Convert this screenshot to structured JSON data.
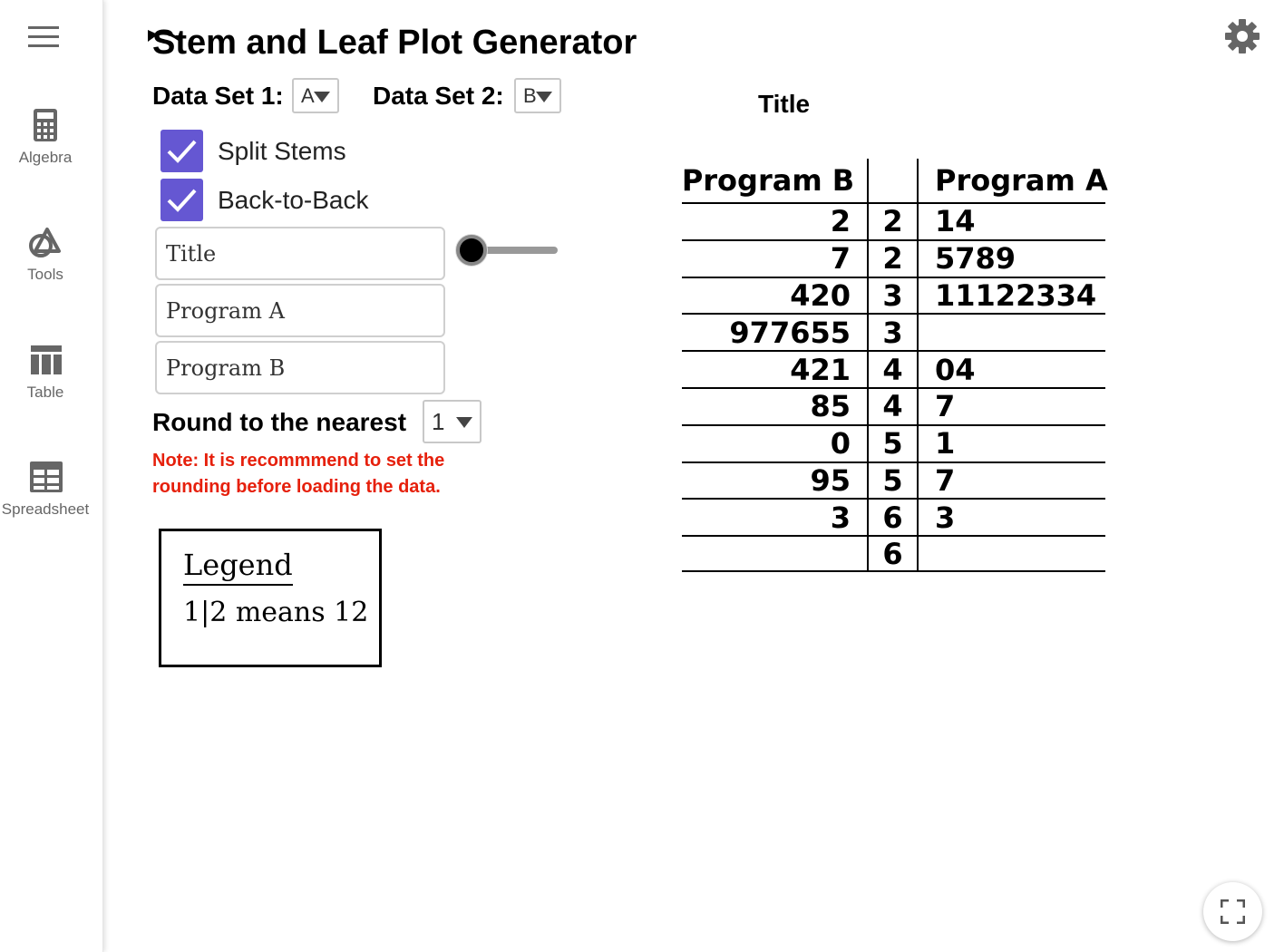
{
  "sidebar": {
    "items": [
      {
        "label": "Algebra",
        "icon": "calculator-icon"
      },
      {
        "label": "Tools",
        "icon": "shapes-icon"
      },
      {
        "label": "Table",
        "icon": "table-icon"
      },
      {
        "label": "Spreadsheet",
        "icon": "spreadsheet-icon"
      }
    ]
  },
  "header": {
    "title": "Stem and Leaf Plot Generator"
  },
  "controls": {
    "dataset1_label": "Data Set 1:",
    "dataset1_value": "A",
    "dataset2_label": "Data Set 2:",
    "dataset2_value": "B",
    "split_stems_label": "Split Stems",
    "split_stems_checked": true,
    "back_to_back_label": "Back-to-Back",
    "back_to_back_checked": true,
    "title_field_value": "Title",
    "program_a_field_value": "Program A",
    "program_b_field_value": "Program B",
    "slider_value": 0,
    "round_label": "Round to the nearest",
    "round_value": "1",
    "note": "Note: It is recommmend to set the rounding before loading the data."
  },
  "legend": {
    "title": "Legend",
    "text": "1|2 means 12"
  },
  "plot": {
    "title": "Title",
    "left_header": "Program B",
    "stem_header": "",
    "right_header": "Program A",
    "rows": [
      {
        "left": "2",
        "stem": "2",
        "right": "14"
      },
      {
        "left": "7",
        "stem": "2",
        "right": "5789"
      },
      {
        "left": "420",
        "stem": "3",
        "right": "11122334"
      },
      {
        "left": "977655",
        "stem": "3",
        "right": ""
      },
      {
        "left": "421",
        "stem": "4",
        "right": "04"
      },
      {
        "left": "85",
        "stem": "4",
        "right": "7"
      },
      {
        "left": "0",
        "stem": "5",
        "right": "1"
      },
      {
        "left": "95",
        "stem": "5",
        "right": "7"
      },
      {
        "left": "3",
        "stem": "6",
        "right": "3"
      },
      {
        "left": "",
        "stem": "6",
        "right": ""
      }
    ]
  },
  "colors": {
    "checkbox": "#6557d2",
    "note": "#e6200c",
    "sidebar_text": "#666666"
  }
}
